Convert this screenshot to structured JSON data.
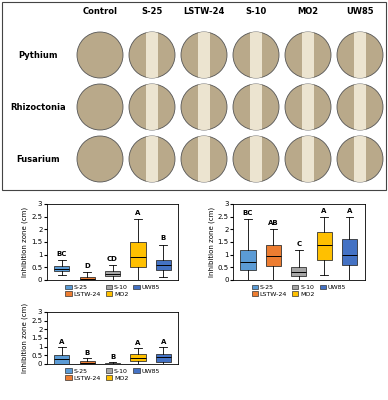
{
  "plates": {
    "columns": [
      "Control",
      "S-25",
      "LSTW-24",
      "S-10",
      "MO2",
      "UW85"
    ],
    "rows": [
      "Pythium",
      "Rhizoctonia",
      "Fusarium"
    ]
  },
  "chart_data": [
    {
      "type": "box",
      "categories": [
        "S-25",
        "LSTW-24",
        "S-10",
        "MO2",
        "UW85"
      ],
      "colors": [
        "#5b9bd5",
        "#ed7d31",
        "#a5a5a5",
        "#ffc000",
        "#4472c4"
      ],
      "whisker_low": [
        0.2,
        0,
        0,
        0,
        0.1
      ],
      "q1": [
        0.35,
        0,
        0.15,
        0.5,
        0.4
      ],
      "median": [
        0.45,
        0.05,
        0.25,
        0.9,
        0.6
      ],
      "q3": [
        0.55,
        0.1,
        0.35,
        1.5,
        0.8
      ],
      "whisker_high": [
        0.8,
        0.3,
        0.6,
        2.4,
        1.4
      ],
      "letters": [
        "BC",
        "D",
        "CD",
        "A",
        "B"
      ],
      "y_label": "Inhibition zone (cm)",
      "ylim": [
        0,
        3
      ],
      "yticks": [
        0,
        0.5,
        1,
        1.5,
        2,
        2.5,
        3
      ],
      "legend": "bottom",
      "tick_labels": "y"
    },
    {
      "type": "box",
      "categories": [
        "S-25",
        "LSTW-24",
        "S-10",
        "MO2",
        "UW85"
      ],
      "colors": [
        "#5b9bd5",
        "#ed7d31",
        "#a5a5a5",
        "#ffc000",
        "#4472c4"
      ],
      "whisker_low": [
        0,
        0,
        0,
        0.2,
        0
      ],
      "q1": [
        0.4,
        0.55,
        0.15,
        0.8,
        0.6
      ],
      "median": [
        0.7,
        0.95,
        0.3,
        1.4,
        1.0
      ],
      "q3": [
        1.2,
        1.4,
        0.5,
        1.9,
        1.6
      ],
      "whisker_high": [
        2.4,
        2.0,
        1.2,
        2.5,
        2.5
      ],
      "letters": [
        "BC",
        "AB",
        "C",
        "A",
        "A"
      ],
      "y_label": "Inhibition zone (cm)",
      "ylim": [
        0,
        3
      ],
      "yticks": [
        0,
        0.5,
        1,
        1.5,
        2,
        2.5,
        3
      ],
      "legend": "bottom",
      "tick_labels": "y"
    },
    {
      "type": "box",
      "categories": [
        "S-25",
        "LSTW-24",
        "S-10",
        "MO2",
        "UW85"
      ],
      "colors": [
        "#5b9bd5",
        "#ed7d31",
        "#a5a5a5",
        "#ffc000",
        "#4472c4"
      ],
      "whisker_low": [
        0,
        0,
        0,
        0,
        0
      ],
      "q1": [
        0,
        0,
        0,
        0.2,
        0.1
      ],
      "median": [
        0.3,
        0.05,
        0.02,
        0.35,
        0.4
      ],
      "q3": [
        0.5,
        0.15,
        0.05,
        0.55,
        0.6
      ],
      "whisker_high": [
        1.0,
        0.35,
        0.1,
        0.9,
        1.0
      ],
      "letters": [
        "A",
        "B",
        "B",
        "A",
        "A"
      ],
      "y_label": "Inhibition zone (cm)",
      "ylim": [
        0,
        3
      ],
      "yticks": [
        0,
        0.5,
        1,
        1.5,
        2,
        2.5,
        3
      ],
      "legend": "bottom",
      "tick_labels": "y"
    }
  ]
}
